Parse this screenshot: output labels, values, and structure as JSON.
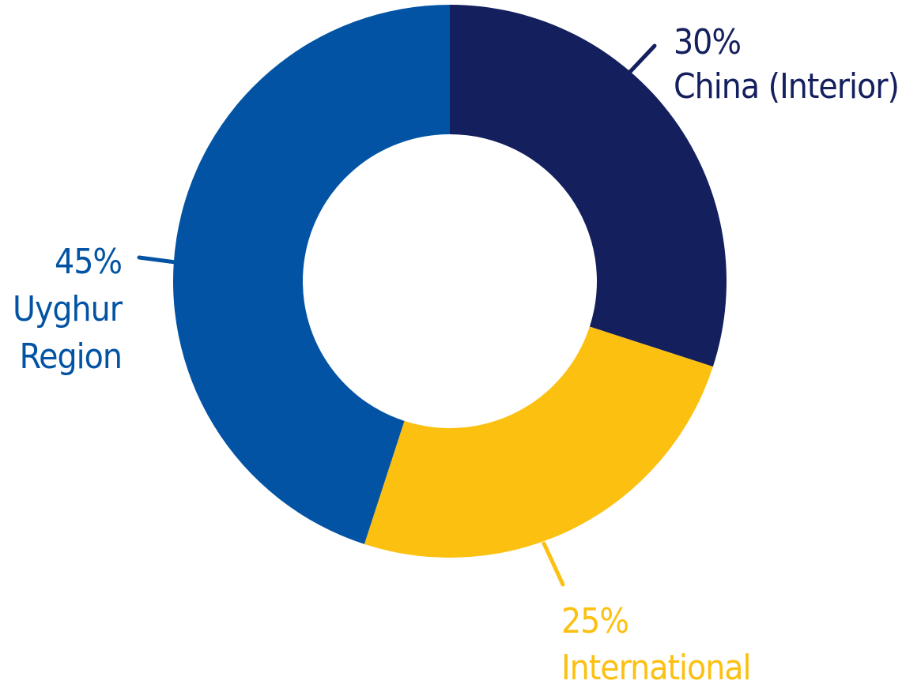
{
  "chart_data": {
    "type": "pie",
    "variant": "donut",
    "title": "",
    "legend": "none",
    "slices": [
      {
        "label_lines": [
          "China (Interior)"
        ],
        "value": 30,
        "value_label": "30%",
        "color": "#141f5e"
      },
      {
        "label_lines": [
          "International"
        ],
        "value": 25,
        "value_label": "25%",
        "color": "#fcc010"
      },
      {
        "label_lines": [
          "Uyghur",
          "Region"
        ],
        "value": 45,
        "value_label": "45%",
        "color": "#0253a4"
      }
    ]
  }
}
